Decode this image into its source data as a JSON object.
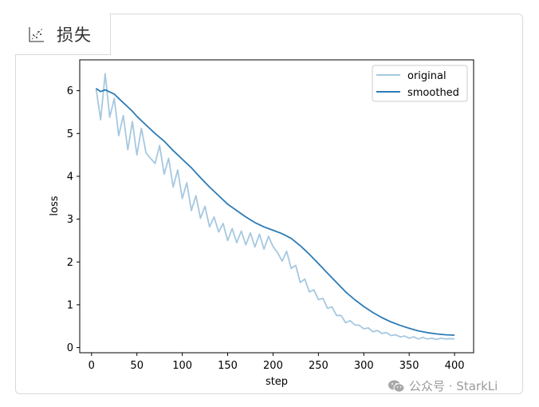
{
  "panel": {
    "tab_label": "损失",
    "tab_icon": "scatter-chart-icon"
  },
  "watermark": {
    "icon": "wechat-icon",
    "text": "公众号 · StarkLi"
  },
  "chart_data": {
    "type": "line",
    "title": "",
    "xlabel": "step",
    "ylabel": "loss",
    "xlim": [
      -13,
      421
    ],
    "ylim": [
      -0.12,
      6.72
    ],
    "xticks": [
      0,
      50,
      100,
      150,
      200,
      250,
      300,
      350,
      400
    ],
    "yticks": [
      0,
      1,
      2,
      3,
      4,
      5,
      6
    ],
    "grid": false,
    "legend": {
      "position": "top-right"
    },
    "series": [
      {
        "name": "original",
        "color": "#a6c8e0",
        "x": [
          5,
          10,
          15,
          20,
          25,
          30,
          35,
          40,
          45,
          50,
          55,
          60,
          65,
          70,
          75,
          80,
          85,
          90,
          95,
          100,
          105,
          110,
          115,
          120,
          125,
          130,
          135,
          140,
          145,
          150,
          155,
          160,
          165,
          170,
          175,
          180,
          185,
          190,
          195,
          200,
          205,
          210,
          215,
          220,
          225,
          230,
          235,
          240,
          245,
          250,
          255,
          260,
          265,
          270,
          275,
          280,
          285,
          290,
          295,
          300,
          305,
          310,
          315,
          320,
          325,
          330,
          335,
          340,
          345,
          350,
          355,
          360,
          365,
          370,
          375,
          380,
          385,
          390,
          395,
          400
        ],
        "y": [
          6.05,
          5.32,
          6.4,
          5.38,
          5.82,
          4.95,
          5.42,
          4.62,
          5.28,
          4.5,
          5.12,
          4.55,
          4.42,
          4.3,
          4.72,
          4.05,
          4.42,
          3.75,
          4.15,
          3.48,
          3.85,
          3.2,
          3.55,
          3.02,
          3.3,
          2.82,
          3.05,
          2.7,
          2.9,
          2.5,
          2.78,
          2.45,
          2.72,
          2.4,
          2.68,
          2.35,
          2.65,
          2.3,
          2.6,
          2.36,
          2.22,
          2.02,
          2.25,
          1.85,
          1.92,
          1.52,
          1.6,
          1.3,
          1.35,
          1.12,
          1.15,
          0.92,
          0.95,
          0.75,
          0.75,
          0.58,
          0.63,
          0.53,
          0.52,
          0.44,
          0.46,
          0.37,
          0.4,
          0.33,
          0.35,
          0.28,
          0.3,
          0.25,
          0.27,
          0.22,
          0.25,
          0.2,
          0.24,
          0.2,
          0.22,
          0.19,
          0.22,
          0.2,
          0.21,
          0.2
        ]
      },
      {
        "name": "smoothed",
        "color": "#2c7bb6",
        "x": [
          5,
          10,
          15,
          20,
          25,
          30,
          35,
          40,
          45,
          50,
          60,
          70,
          80,
          90,
          100,
          110,
          120,
          130,
          140,
          150,
          160,
          170,
          180,
          190,
          200,
          210,
          220,
          230,
          240,
          250,
          260,
          270,
          280,
          290,
          300,
          310,
          320,
          330,
          340,
          350,
          360,
          370,
          380,
          390,
          400
        ],
        "y": [
          6.05,
          5.98,
          6.02,
          5.97,
          5.92,
          5.82,
          5.72,
          5.62,
          5.52,
          5.4,
          5.2,
          5.0,
          4.82,
          4.6,
          4.4,
          4.2,
          3.97,
          3.75,
          3.55,
          3.35,
          3.2,
          3.05,
          2.92,
          2.82,
          2.74,
          2.66,
          2.55,
          2.38,
          2.18,
          1.96,
          1.74,
          1.52,
          1.3,
          1.12,
          0.96,
          0.82,
          0.7,
          0.6,
          0.52,
          0.45,
          0.39,
          0.35,
          0.32,
          0.3,
          0.29
        ]
      }
    ]
  }
}
